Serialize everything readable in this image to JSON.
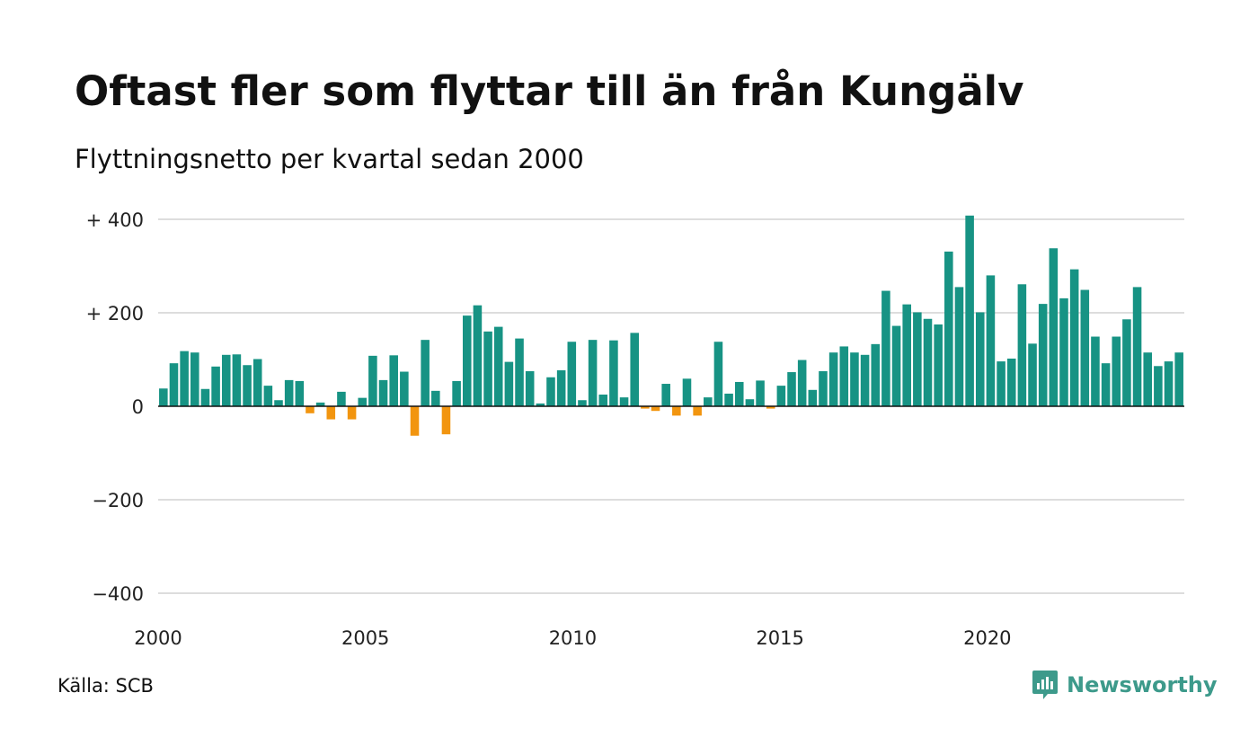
{
  "header": {
    "title": "Oftast fler som flyttar till än från Kungälv",
    "subtitle": "Flyttningsnetto per kvartal sedan 2000"
  },
  "footer": {
    "source": "Källa: SCB",
    "brand": "Newsworthy",
    "brand_icon": "newsworthy-logo-icon"
  },
  "colors": {
    "positive": "#179384",
    "negative": "#f2950f",
    "grid": "#dddddd",
    "zero_line": "#111111",
    "brand": "#3d9a8b"
  },
  "chart_data": {
    "type": "bar",
    "title": "Oftast fler som flyttar till än från Kungälv",
    "subtitle": "Flyttningsnetto per kvartal sedan 2000",
    "ylim": [
      -400,
      420
    ],
    "yticks": [
      {
        "value": 400,
        "label": "+ 400"
      },
      {
        "value": 200,
        "label": "+ 200"
      },
      {
        "value": 0,
        "label": "0"
      },
      {
        "value": -200,
        "label": "−200"
      },
      {
        "value": -400,
        "label": "−400"
      }
    ],
    "xlim": [
      2000,
      2024.75
    ],
    "xticks": [
      {
        "value": 2000,
        "label": "2000"
      },
      {
        "value": 2005,
        "label": "2005"
      },
      {
        "value": 2010,
        "label": "2010"
      },
      {
        "value": 2015,
        "label": "2015"
      },
      {
        "value": 2020,
        "label": "2020"
      }
    ],
    "grid": true,
    "start": "2000 Q1",
    "values": [
      38,
      92,
      118,
      115,
      37,
      85,
      110,
      111,
      88,
      101,
      44,
      13,
      56,
      54,
      -15,
      8,
      -28,
      31,
      -28,
      18,
      108,
      56,
      109,
      74,
      -63,
      142,
      33,
      -60,
      54,
      194,
      216,
      160,
      170,
      95,
      145,
      75,
      6,
      62,
      77,
      138,
      13,
      142,
      25,
      141,
      19,
      157,
      -5,
      -10,
      48,
      -20,
      59,
      -20,
      19,
      138,
      27,
      52,
      15,
      55,
      -5,
      44,
      73,
      99,
      35,
      75,
      115,
      128,
      115,
      110,
      133,
      247,
      172,
      218,
      201,
      187,
      175,
      331,
      255,
      408,
      201,
      280,
      96,
      102,
      261,
      134,
      219,
      338,
      231,
      293,
      249,
      149,
      92,
      149,
      186,
      255,
      115,
      86,
      96,
      115
    ]
  }
}
